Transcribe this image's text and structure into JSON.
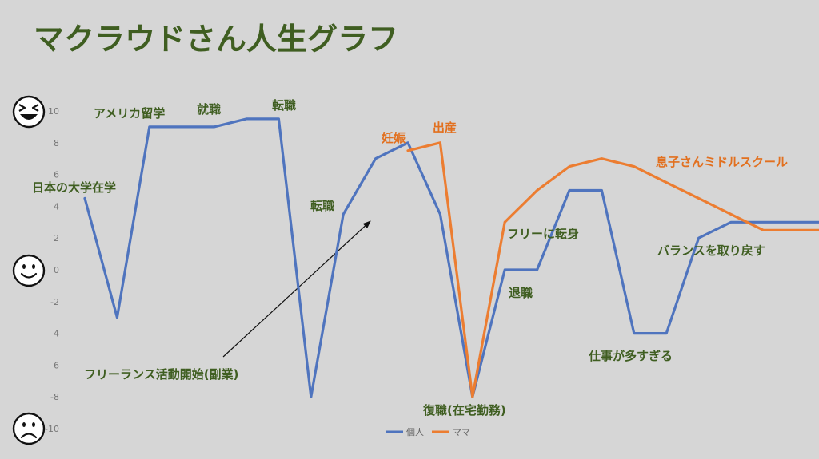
{
  "title": "マクラウドさん人生グラフ",
  "colors": {
    "title": "#3f5e21",
    "series1": "#4f74be",
    "series2": "#ec7d31",
    "annotation_green": "#3f5e21",
    "annotation_orange": "#e2701f",
    "arrow": "#111111",
    "face": "#111111"
  },
  "faces": [
    "grinning-face-icon",
    "smiling-face-icon",
    "frowning-face-icon"
  ],
  "chart_data": {
    "type": "line",
    "title": "マクラウドさん人生グラフ",
    "xlabel": "",
    "ylabel": "",
    "ylim": [
      -10,
      10
    ],
    "yticks": [
      10,
      8,
      6,
      4,
      2,
      0,
      -2,
      -4,
      -6,
      -8,
      -10
    ],
    "grid": false,
    "legend_position": "bottom",
    "x": [
      1,
      2,
      3,
      4,
      5,
      6,
      7,
      8,
      9,
      10,
      11,
      12,
      13,
      14,
      15,
      16,
      17,
      18,
      19,
      20,
      21,
      22,
      23,
      24
    ],
    "series": [
      {
        "name": "個人",
        "x": [
          1,
          2,
          3,
          4,
          5,
          6,
          7,
          8,
          9,
          10,
          11,
          12,
          13,
          14,
          15,
          16,
          17,
          18,
          19,
          20,
          21,
          22,
          23,
          24
        ],
        "values": [
          4.5,
          -3,
          9,
          9,
          9,
          9.5,
          9.5,
          -8,
          3.5,
          7,
          8,
          3.5,
          -8,
          0,
          0,
          5,
          5,
          -4,
          -4,
          2,
          3,
          3,
          3,
          3
        ]
      },
      {
        "name": "ママ",
        "x": [
          11,
          12,
          13,
          14,
          15,
          16,
          17,
          18,
          19,
          20,
          21,
          22,
          23,
          24
        ],
        "values": [
          7.5,
          8,
          -8,
          3,
          5,
          6.5,
          7,
          6.5,
          5.5,
          4.5,
          3.5,
          2.5,
          2.5,
          2.5
        ]
      }
    ],
    "annotations": [
      {
        "text": "日本の大学在学",
        "color": "green"
      },
      {
        "text": "アメリカ留学",
        "color": "green"
      },
      {
        "text": "就職",
        "color": "green"
      },
      {
        "text": "転職",
        "color": "green"
      },
      {
        "text": "転職",
        "color": "green"
      },
      {
        "text": "妊娠",
        "color": "orange"
      },
      {
        "text": "出産",
        "color": "orange"
      },
      {
        "text": "フリーランス活動開始(副業)",
        "color": "green"
      },
      {
        "text": "復職(在宅勤務)",
        "color": "green"
      },
      {
        "text": "退職",
        "color": "green"
      },
      {
        "text": "フリーに転身",
        "color": "green"
      },
      {
        "text": "息子さんミドルスクール",
        "color": "orange"
      },
      {
        "text": "仕事が多すぎる",
        "color": "green"
      },
      {
        "text": "バランスを取り戻す",
        "color": "green"
      }
    ]
  }
}
